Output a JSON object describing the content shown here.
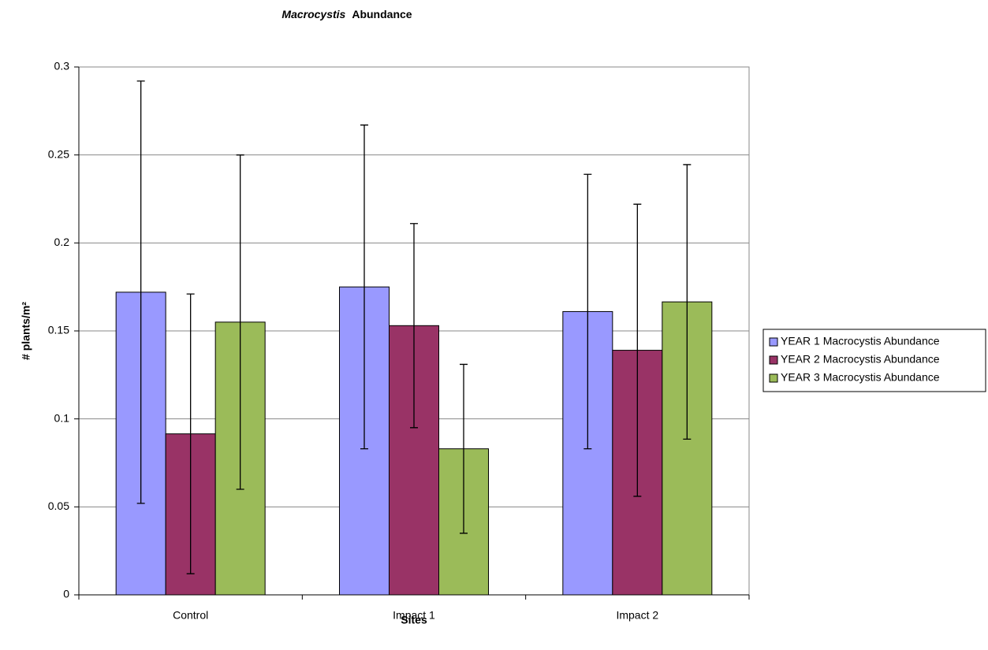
{
  "chart_data": {
    "type": "bar",
    "title": [
      "Macrocystis",
      "Abundance"
    ],
    "x_label": "Sites",
    "y_label": "# plants/m²",
    "categories": [
      "Control",
      "Impact 1",
      "Impact 2"
    ],
    "series": [
      {
        "name": "YEAR 1 Macrocystis Abundance",
        "color": "#9999ff",
        "values": [
          0.172,
          0.175,
          0.161
        ],
        "errors": [
          0.12,
          0.092,
          0.078
        ]
      },
      {
        "name": "YEAR 2 Macrocystis Abundance",
        "color": "#993366",
        "values": [
          0.0915,
          0.153,
          0.139
        ],
        "errors": [
          0.0795,
          0.058,
          0.083
        ]
      },
      {
        "name": "YEAR 3 Macrocystis Abundance",
        "color": "#9bbb59",
        "values": [
          0.155,
          0.083,
          0.1665
        ],
        "errors": [
          0.095,
          0.048,
          0.078
        ]
      }
    ],
    "ylim": [
      0,
      0.3
    ],
    "yticks": [
      0,
      0.05,
      0.1,
      0.15,
      0.2,
      0.25,
      0.3
    ],
    "grid": true,
    "legend": "right"
  }
}
